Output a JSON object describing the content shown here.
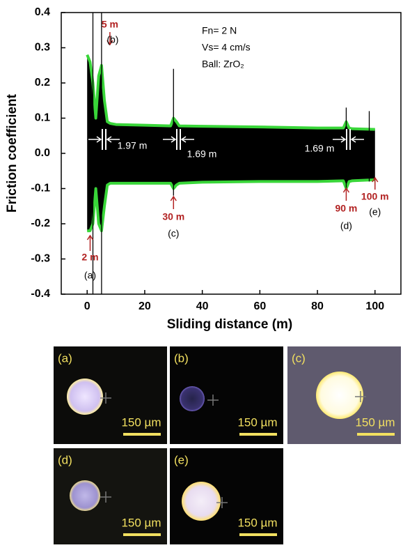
{
  "chart_data": {
    "type": "band",
    "x_label": "Sliding distance (m)",
    "y_label": "Friction coefficient",
    "xlim": [
      -9,
      109
    ],
    "xticks": [
      0,
      20,
      40,
      60,
      80,
      100
    ],
    "ylim": [
      -0.4,
      0.4
    ],
    "yticks": [
      -0.4,
      -0.3,
      -0.2,
      -0.1,
      {
        "value": 0,
        "label": "0.0"
      },
      0.1,
      0.2,
      0.3,
      0.4
    ],
    "x": [
      0,
      1,
      2,
      3,
      4,
      5,
      6,
      7,
      8,
      10,
      20,
      29,
      30,
      31,
      32,
      40,
      60,
      80,
      89,
      90,
      91,
      92,
      100
    ],
    "series": [
      {
        "color": "#39d639",
        "values": [
          0.28,
          0.26,
          0.2,
          0.1,
          0.22,
          0.25,
          0.15,
          0.09,
          0.085,
          0.082,
          0.08,
          0.078,
          0.1,
          0.09,
          0.078,
          0.077,
          0.075,
          0.072,
          0.072,
          0.09,
          0.072,
          0.07,
          0.068
        ]
      },
      {
        "color": "#39d639",
        "values": [
          -0.22,
          -0.22,
          -0.2,
          -0.1,
          -0.2,
          -0.22,
          -0.15,
          -0.09,
          -0.085,
          -0.085,
          -0.085,
          -0.085,
          -0.1,
          -0.09,
          -0.085,
          -0.082,
          -0.08,
          -0.08,
          -0.078,
          -0.1,
          -0.08,
          -0.078,
          -0.075
        ]
      }
    ],
    "spikes": {
      "x": [
        2,
        5,
        30,
        90,
        98
      ],
      "high": [
        0.4,
        0.4,
        0.24,
        0.13,
        0.12
      ],
      "low": [
        -0.4,
        -0.4,
        -0.12,
        -0.1,
        -0.08
      ]
    },
    "markers": [
      {
        "value": 2,
        "label": "2 m",
        "tag": "(a)"
      },
      {
        "value": 5,
        "label": "5 m",
        "tag": "(b)"
      },
      {
        "value": 30,
        "label": "30 m",
        "tag": "(c)"
      },
      {
        "value": 90,
        "label": "90 m",
        "tag": "(d)"
      },
      {
        "value": 100,
        "label": "100 m",
        "tag": "(e)"
      }
    ],
    "spacings": [
      "1.97 m",
      "1.69 m",
      "1.69 m"
    ],
    "conditions": [
      "Fn= 2 N",
      "Vs= 4 cm/s",
      "Ball: ZrO₂"
    ]
  },
  "panels": [
    {
      "label": "(a)",
      "scale": "150 µm"
    },
    {
      "label": "(b)",
      "scale": "150 µm"
    },
    {
      "label": "(c)",
      "scale": "150 µm"
    },
    {
      "label": "(d)",
      "scale": "150 µm"
    },
    {
      "label": "(e)",
      "scale": "150 µm"
    }
  ]
}
